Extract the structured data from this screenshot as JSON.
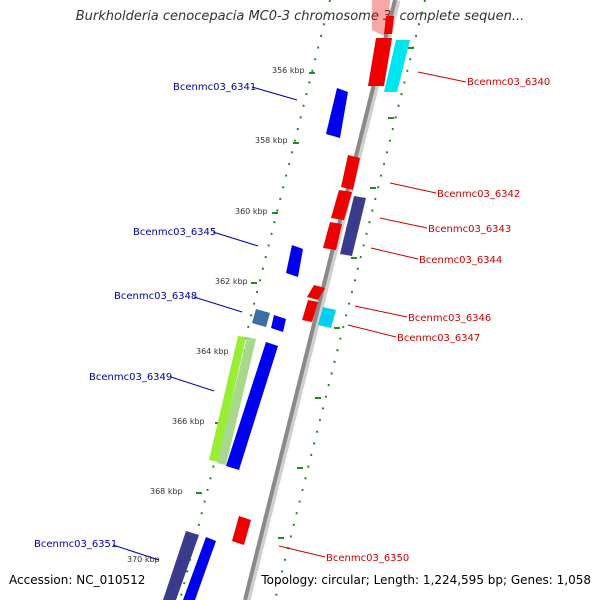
{
  "title": "Burkholderia cenocepacia MC0-3 chromosome 3, complete sequen...",
  "footer": {
    "accession": "Accession: NC_010512",
    "summary": "Topology: circular; Length: 1,224,595 bp; Genes: 1,058"
  },
  "colors": {
    "backbone": "#8a8a8a",
    "tick": "#228b22",
    "left_label": "#0000aa",
    "right_label": "#cc0000",
    "red_feature": "#ee0000",
    "blue_feature": "#0000ee",
    "cyan_feature": "#00e5ee",
    "navy_feature": "#3b3b8c",
    "steelblue_feature": "#3a6ea5",
    "green_feature": "#99ee33"
  },
  "kbp_labels": [
    "356 kbp",
    "358 kbp",
    "360 kbp",
    "362 kbp",
    "364 kbp",
    "366 kbp",
    "368 kbp",
    "370 kbp"
  ],
  "left_genes": [
    "Bcenmc03_6341",
    "Bcenmc03_6345",
    "Bcenmc03_6348",
    "Bcenmc03_6349",
    "Bcenmc03_6351"
  ],
  "right_genes": [
    "Bcenmc03_6340",
    "Bcenmc03_6342",
    "Bcenmc03_6343",
    "Bcenmc03_6344",
    "Bcenmc03_6346",
    "Bcenmc03_6347",
    "Bcenmc03_6350"
  ]
}
